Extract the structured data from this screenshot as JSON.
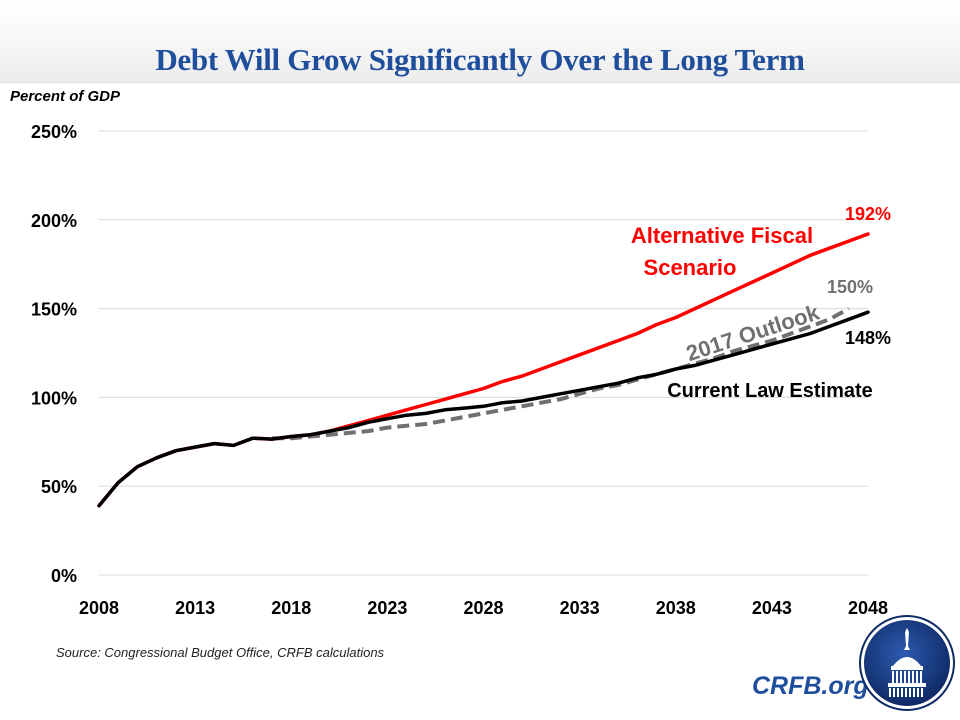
{
  "header": {
    "title": "Debt Will Grow Significantly Over the Long Term"
  },
  "footer": {
    "source": "Source: Congressional Budget Office, CRFB calculations",
    "brand": "CRFB.org",
    "logo_icon": "capitol-dome-logo-icon"
  },
  "colors": {
    "title": "#1f4e9c",
    "afs": "#ff0000",
    "current_law": "#000000",
    "outlook_2017": "#707070",
    "grid": "#d9d9d9"
  },
  "chart_data": {
    "type": "line",
    "title": "Debt Will Grow Significantly Over the Long Term",
    "xlabel": "",
    "ylabel": "Percent of GDP",
    "xlim": [
      2008,
      2048
    ],
    "ylim": [
      0,
      250
    ],
    "grid": true,
    "x_ticks": [
      "2008",
      "2013",
      "2018",
      "2023",
      "2028",
      "2033",
      "2038",
      "2043",
      "2048"
    ],
    "y_ticks": [
      "0%",
      "50%",
      "100%",
      "150%",
      "200%",
      "250%"
    ],
    "series": [
      {
        "name": "Alternative Fiscal Scenario",
        "label_lines": [
          "Alternative Fiscal",
          "Scenario"
        ],
        "end_label": "192%",
        "color": "#ff0000",
        "style": "solid",
        "x": [
          2008,
          2009,
          2010,
          2011,
          2012,
          2013,
          2014,
          2015,
          2016,
          2017,
          2018,
          2019,
          2020,
          2021,
          2022,
          2023,
          2024,
          2025,
          2026,
          2027,
          2028,
          2029,
          2030,
          2031,
          2032,
          2033,
          2034,
          2035,
          2036,
          2037,
          2038,
          2039,
          2040,
          2041,
          2042,
          2043,
          2044,
          2045,
          2046,
          2047,
          2048
        ],
        "values": [
          39,
          52,
          61,
          66,
          70,
          72,
          74,
          73,
          77,
          76.5,
          78,
          79,
          81,
          84,
          87,
          90,
          93,
          96,
          99,
          102,
          105,
          109,
          112,
          116,
          120,
          124,
          128,
          132,
          136,
          141,
          145,
          150,
          155,
          160,
          165,
          170,
          175,
          180,
          184,
          188,
          192
        ]
      },
      {
        "name": "Current Law Estimate",
        "label_lines": [
          "Current Law Estimate"
        ],
        "end_label": "148%",
        "color": "#000000",
        "style": "solid",
        "x": [
          2008,
          2009,
          2010,
          2011,
          2012,
          2013,
          2014,
          2015,
          2016,
          2017,
          2018,
          2019,
          2020,
          2021,
          2022,
          2023,
          2024,
          2025,
          2026,
          2027,
          2028,
          2029,
          2030,
          2031,
          2032,
          2033,
          2034,
          2035,
          2036,
          2037,
          2038,
          2039,
          2040,
          2041,
          2042,
          2043,
          2044,
          2045,
          2046,
          2047,
          2048
        ],
        "values": [
          39,
          52,
          61,
          66,
          70,
          72,
          74,
          73,
          77,
          76.5,
          78,
          79,
          81,
          83,
          86,
          88,
          90,
          91,
          93,
          94,
          95,
          97,
          98,
          100,
          102,
          104,
          106,
          108,
          111,
          113,
          116,
          118,
          121,
          124,
          127,
          130,
          133,
          136,
          140,
          144,
          148
        ]
      },
      {
        "name": "2017 Outlook",
        "label_lines": [
          "2017 Outlook"
        ],
        "end_label": "150%",
        "color": "#707070",
        "style": "dashed",
        "x": [
          2017,
          2018,
          2019,
          2020,
          2021,
          2022,
          2023,
          2024,
          2025,
          2026,
          2027,
          2028,
          2029,
          2030,
          2031,
          2032,
          2033,
          2034,
          2035,
          2036,
          2037,
          2038,
          2039,
          2040,
          2041,
          2042,
          2043,
          2044,
          2045,
          2046,
          2047
        ],
        "values": [
          77,
          77,
          78,
          79,
          80,
          81,
          83,
          84,
          85,
          87,
          89,
          91,
          93,
          95,
          97,
          99,
          102,
          105,
          107,
          110,
          113,
          116,
          119,
          122,
          126,
          129,
          132,
          136,
          140,
          144,
          150
        ]
      }
    ]
  }
}
